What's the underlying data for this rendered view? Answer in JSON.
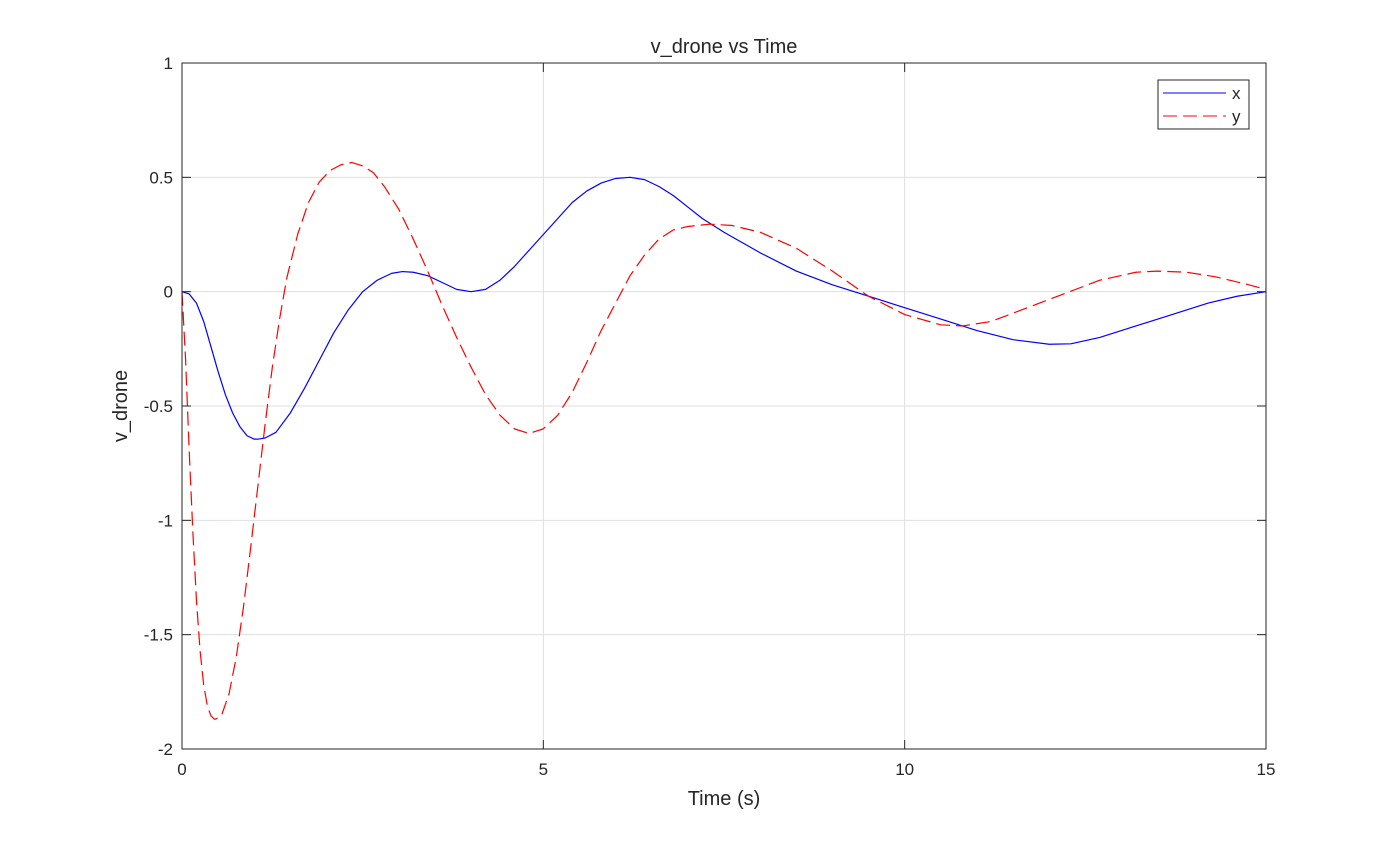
{
  "chart_data": {
    "type": "line",
    "title": "v_drone vs Time",
    "xlabel": "Time (s)",
    "ylabel": "v_drone",
    "xlim": [
      0,
      15
    ],
    "ylim": [
      -2,
      1
    ],
    "x_ticks": [
      0,
      5,
      10,
      15
    ],
    "y_ticks": [
      -2,
      -1.5,
      -1,
      -0.5,
      0,
      0.5,
      1
    ],
    "x_tick_labels": [
      "0",
      "5",
      "10",
      "15"
    ],
    "y_tick_labels": [
      "-2",
      "-1.5",
      "-1",
      "-0.5",
      "0",
      "0.5",
      "1"
    ],
    "grid": true,
    "legend_position": "top-right",
    "series": [
      {
        "name": "x",
        "color": "#0000ff",
        "style": "solid",
        "points": [
          [
            0,
            0
          ],
          [
            0.1,
            -0.01
          ],
          [
            0.2,
            -0.05
          ],
          [
            0.3,
            -0.13
          ],
          [
            0.4,
            -0.24
          ],
          [
            0.5,
            -0.35
          ],
          [
            0.6,
            -0.45
          ],
          [
            0.7,
            -0.53
          ],
          [
            0.8,
            -0.59
          ],
          [
            0.9,
            -0.63
          ],
          [
            1.0,
            -0.645
          ],
          [
            1.05,
            -0.645
          ],
          [
            1.15,
            -0.64
          ],
          [
            1.3,
            -0.615
          ],
          [
            1.5,
            -0.53
          ],
          [
            1.7,
            -0.42
          ],
          [
            1.9,
            -0.3
          ],
          [
            2.1,
            -0.18
          ],
          [
            2.3,
            -0.08
          ],
          [
            2.5,
            0.0
          ],
          [
            2.7,
            0.05
          ],
          [
            2.9,
            0.08
          ],
          [
            3.05,
            0.088
          ],
          [
            3.2,
            0.085
          ],
          [
            3.4,
            0.07
          ],
          [
            3.6,
            0.04
          ],
          [
            3.8,
            0.01
          ],
          [
            4.0,
            0.0
          ],
          [
            4.2,
            0.01
          ],
          [
            4.4,
            0.05
          ],
          [
            4.6,
            0.11
          ],
          [
            4.8,
            0.18
          ],
          [
            5.0,
            0.25
          ],
          [
            5.2,
            0.32
          ],
          [
            5.4,
            0.39
          ],
          [
            5.6,
            0.44
          ],
          [
            5.8,
            0.475
          ],
          [
            6.0,
            0.495
          ],
          [
            6.2,
            0.5
          ],
          [
            6.4,
            0.49
          ],
          [
            6.6,
            0.46
          ],
          [
            6.8,
            0.42
          ],
          [
            7.0,
            0.37
          ],
          [
            7.2,
            0.32
          ],
          [
            7.5,
            0.26
          ],
          [
            8.0,
            0.17
          ],
          [
            8.5,
            0.09
          ],
          [
            9.0,
            0.03
          ],
          [
            9.5,
            -0.02
          ],
          [
            10.0,
            -0.07
          ],
          [
            10.5,
            -0.12
          ],
          [
            11.0,
            -0.17
          ],
          [
            11.5,
            -0.21
          ],
          [
            12.0,
            -0.23
          ],
          [
            12.3,
            -0.228
          ],
          [
            12.7,
            -0.2
          ],
          [
            13.2,
            -0.15
          ],
          [
            13.7,
            -0.1
          ],
          [
            14.2,
            -0.05
          ],
          [
            14.6,
            -0.02
          ],
          [
            15.0,
            0.0
          ]
        ]
      },
      {
        "name": "y",
        "color": "#ff0000",
        "style": "dashed",
        "points": [
          [
            0,
            0
          ],
          [
            0.05,
            -0.3
          ],
          [
            0.1,
            -0.7
          ],
          [
            0.15,
            -1.05
          ],
          [
            0.2,
            -1.35
          ],
          [
            0.25,
            -1.57
          ],
          [
            0.3,
            -1.72
          ],
          [
            0.35,
            -1.81
          ],
          [
            0.4,
            -1.855
          ],
          [
            0.45,
            -1.87
          ],
          [
            0.5,
            -1.865
          ],
          [
            0.55,
            -1.85
          ],
          [
            0.65,
            -1.76
          ],
          [
            0.75,
            -1.6
          ],
          [
            0.85,
            -1.38
          ],
          [
            0.95,
            -1.12
          ],
          [
            1.05,
            -0.85
          ],
          [
            1.15,
            -0.58
          ],
          [
            1.25,
            -0.33
          ],
          [
            1.35,
            -0.12
          ],
          [
            1.45,
            0.06
          ],
          [
            1.6,
            0.25
          ],
          [
            1.75,
            0.39
          ],
          [
            1.9,
            0.48
          ],
          [
            2.05,
            0.53
          ],
          [
            2.2,
            0.555
          ],
          [
            2.35,
            0.565
          ],
          [
            2.5,
            0.55
          ],
          [
            2.65,
            0.52
          ],
          [
            2.8,
            0.46
          ],
          [
            3.0,
            0.36
          ],
          [
            3.2,
            0.23
          ],
          [
            3.4,
            0.09
          ],
          [
            3.6,
            -0.06
          ],
          [
            3.8,
            -0.2
          ],
          [
            4.0,
            -0.33
          ],
          [
            4.2,
            -0.45
          ],
          [
            4.4,
            -0.54
          ],
          [
            4.6,
            -0.6
          ],
          [
            4.8,
            -0.62
          ],
          [
            5.0,
            -0.6
          ],
          [
            5.2,
            -0.54
          ],
          [
            5.4,
            -0.44
          ],
          [
            5.6,
            -0.31
          ],
          [
            5.8,
            -0.17
          ],
          [
            6.0,
            -0.05
          ],
          [
            6.2,
            0.07
          ],
          [
            6.4,
            0.16
          ],
          [
            6.6,
            0.23
          ],
          [
            6.8,
            0.27
          ],
          [
            7.0,
            0.285
          ],
          [
            7.3,
            0.295
          ],
          [
            7.6,
            0.29
          ],
          [
            8.0,
            0.26
          ],
          [
            8.5,
            0.19
          ],
          [
            9.0,
            0.09
          ],
          [
            9.5,
            -0.02
          ],
          [
            10.0,
            -0.1
          ],
          [
            10.5,
            -0.145
          ],
          [
            10.8,
            -0.15
          ],
          [
            11.2,
            -0.13
          ],
          [
            11.7,
            -0.07
          ],
          [
            12.2,
            -0.01
          ],
          [
            12.7,
            0.05
          ],
          [
            13.2,
            0.085
          ],
          [
            13.5,
            0.09
          ],
          [
            13.9,
            0.085
          ],
          [
            14.3,
            0.065
          ],
          [
            14.7,
            0.035
          ],
          [
            15.0,
            0.01
          ]
        ]
      }
    ]
  }
}
